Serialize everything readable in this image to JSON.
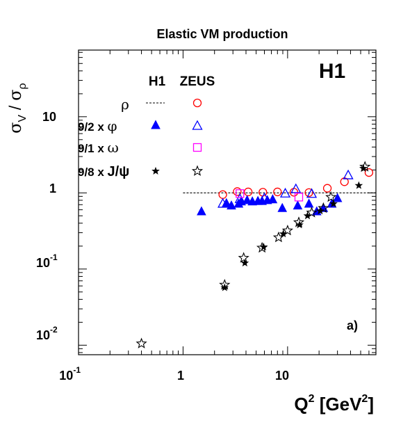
{
  "chart_data": {
    "type": "scatter",
    "title": "Elastic VM production",
    "experiment_label": "H1",
    "panel_label": "a)",
    "xlabel": {
      "main": "Q",
      "sup": "2",
      "unit_open": " [GeV",
      "unit_sup": "2",
      "unit_close": "]"
    },
    "ylabel": {
      "num": "σ",
      "num_sub": "V",
      "slash": " / ",
      "den": "σ",
      "den_sub": "ρ"
    },
    "xscale": "log",
    "yscale": "log",
    "xlim": [
      0.1,
      70
    ],
    "ylim": [
      0.0075,
      75
    ],
    "x_ticks": [
      {
        "value": 0.1,
        "base": "10",
        "exp": "-1"
      },
      {
        "value": 1,
        "base": "1",
        "exp": ""
      },
      {
        "value": 10,
        "base": "10",
        "exp": ""
      }
    ],
    "y_ticks": [
      {
        "value": 0.01,
        "base": "10",
        "exp": "-2"
      },
      {
        "value": 0.1,
        "base": "10",
        "exp": "-1"
      },
      {
        "value": 1,
        "base": "1",
        "exp": ""
      },
      {
        "value": 10,
        "base": "10",
        "exp": ""
      }
    ],
    "grid": false,
    "legend": {
      "placement": "top-left",
      "col_h1": "H1",
      "col_zeus": "ZEUS",
      "rows": [
        {
          "prefix": "",
          "symbol": "ρ",
          "suffix": ""
        },
        {
          "prefix": "9/2 x ",
          "symbol": "φ",
          "suffix": ""
        },
        {
          "prefix": "9/1 x ",
          "symbol": "ω",
          "suffix": ""
        },
        {
          "prefix": "9/8 x ",
          "symbol": "J/ψ",
          "suffix": ""
        }
      ]
    },
    "reference_line": {
      "y": 1,
      "x_from": 1,
      "x_to": 70,
      "style": "dashed"
    },
    "series": [
      {
        "key": "zeus_rho",
        "color": "#ff0000",
        "marker": "open-circle",
        "points": [
          [
            2.4,
            0.95
          ],
          [
            3.3,
            1.04
          ],
          [
            4.2,
            1.03
          ],
          [
            5.8,
            1.02
          ],
          [
            8.0,
            1.03
          ],
          [
            11.5,
            1.02
          ],
          [
            16.0,
            1.01
          ],
          [
            24.0,
            1.15
          ],
          [
            35.0,
            1.4
          ],
          [
            60.0,
            1.85
          ]
        ]
      },
      {
        "key": "h1_phi",
        "color": "#0000ff",
        "marker": "filled-triangle",
        "points": [
          [
            1.5,
            0.57
          ],
          [
            2.6,
            0.73
          ],
          [
            2.9,
            0.68
          ],
          [
            3.4,
            0.72
          ],
          [
            3.6,
            0.77
          ],
          [
            4.1,
            0.8
          ],
          [
            4.6,
            0.77
          ],
          [
            5.2,
            0.78
          ],
          [
            5.7,
            0.78
          ],
          [
            6.4,
            0.8
          ],
          [
            7.2,
            0.82
          ],
          [
            8.9,
            0.63
          ],
          [
            12.5,
            0.68
          ],
          [
            16.0,
            0.72
          ],
          [
            19.0,
            0.57
          ],
          [
            22.0,
            0.63
          ],
          [
            26.5,
            0.72
          ],
          [
            30.0,
            0.85
          ]
        ]
      },
      {
        "key": "zeus_phi",
        "color": "#0000ff",
        "marker": "open-triangle",
        "points": [
          [
            2.4,
            0.72
          ],
          [
            3.5,
            0.83
          ],
          [
            6.0,
            0.85
          ],
          [
            9.5,
            0.98
          ],
          [
            12.0,
            1.12
          ],
          [
            17.0,
            0.97
          ],
          [
            38.0,
            1.7
          ]
        ]
      },
      {
        "key": "zeus_omega",
        "color": "#ff00ff",
        "marker": "open-square",
        "points": [
          [
            3.5,
            0.98
          ],
          [
            12.8,
            0.88
          ]
        ]
      },
      {
        "key": "h1_jpsi",
        "color": "#000000",
        "marker": "filled-star",
        "points": [
          [
            2.5,
            0.057
          ],
          [
            3.9,
            0.12
          ],
          [
            5.9,
            0.195
          ],
          [
            9.1,
            0.29
          ],
          [
            13.0,
            0.38
          ],
          [
            15.5,
            0.5
          ],
          [
            20.5,
            0.58
          ],
          [
            27.5,
            0.72
          ],
          [
            48.0,
            1.25
          ],
          [
            53.0,
            2.1
          ]
        ]
      },
      {
        "key": "zeus_jpsi",
        "color": "#000000",
        "marker": "open-star",
        "points": [
          [
            0.4,
            0.0105
          ],
          [
            2.5,
            0.062
          ],
          [
            3.8,
            0.14
          ],
          [
            5.7,
            0.19
          ],
          [
            8.2,
            0.26
          ],
          [
            10.0,
            0.32
          ],
          [
            12.8,
            0.41
          ],
          [
            17.0,
            0.55
          ],
          [
            22.0,
            0.63
          ],
          [
            26.0,
            0.88
          ],
          [
            55.0,
            2.2
          ]
        ]
      }
    ]
  }
}
